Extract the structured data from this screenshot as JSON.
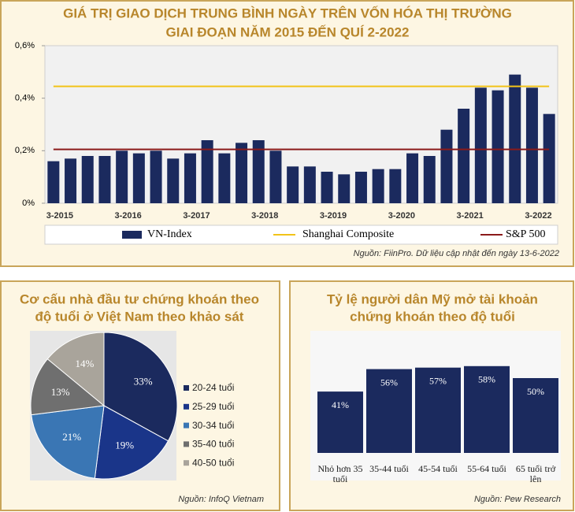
{
  "chart_data": [
    {
      "type": "bar",
      "title": [
        "GIÁ TRỊ GIAO DỊCH TRUNG BÌNH NGÀY TRÊN VỐN HÓA THỊ TRƯỜNG",
        "GIAI ĐOẠN NĂM 2015 ĐẾN QUÍ 2-2022"
      ],
      "categories": [
        "3-2015",
        null,
        null,
        null,
        "3-2016",
        null,
        null,
        null,
        "3-2017",
        null,
        null,
        null,
        "3-2018",
        null,
        null,
        null,
        "3-2019",
        null,
        null,
        null,
        "3-2020",
        null,
        null,
        null,
        "3-2021",
        null,
        null,
        null,
        "3-2022",
        null
      ],
      "series": [
        {
          "name": "VN-Index",
          "type": "bar",
          "color": "#1b2a5e",
          "values": [
            0.16,
            0.17,
            0.18,
            0.18,
            0.2,
            0.19,
            0.2,
            0.17,
            0.19,
            0.24,
            0.19,
            0.23,
            0.24,
            0.2,
            0.14,
            0.14,
            0.12,
            0.11,
            0.12,
            0.13,
            0.13,
            0.19,
            0.18,
            0.28,
            0.36,
            0.44,
            0.43,
            0.49,
            0.44,
            0.34
          ]
        },
        {
          "name": "Shanghai Composite",
          "type": "line",
          "color": "#f2c318",
          "values": [
            0.445,
            0.445,
            0.445,
            0.445,
            0.445,
            0.445,
            0.445,
            0.445,
            0.445,
            0.445,
            0.445,
            0.445,
            0.445,
            0.445,
            0.445,
            0.445,
            0.445,
            0.445,
            0.445,
            0.445,
            0.445,
            0.445,
            0.445,
            0.445,
            0.445,
            0.445,
            0.445,
            0.445,
            0.445,
            0.445
          ]
        },
        {
          "name": "S&P 500",
          "type": "line",
          "color": "#8b1a1a",
          "values": [
            0.205,
            0.205,
            0.205,
            0.205,
            0.205,
            0.205,
            0.205,
            0.205,
            0.205,
            0.205,
            0.205,
            0.205,
            0.205,
            0.205,
            0.205,
            0.205,
            0.205,
            0.205,
            0.205,
            0.205,
            0.205,
            0.205,
            0.205,
            0.205,
            0.205,
            0.205,
            0.205,
            0.205,
            0.205,
            0.205
          ]
        }
      ],
      "ylim": [
        0,
        0.6
      ],
      "yticks": [
        {
          "value": 0,
          "label": "0%"
        },
        {
          "value": 0.2,
          "label": "0,2%"
        },
        {
          "value": 0.4,
          "label": "0,4%"
        },
        {
          "value": 0.6,
          "label": "0,6%"
        }
      ],
      "source": "Nguồn: FiinPro. Dữ liệu cập nhật đến ngày 13-6-2022"
    },
    {
      "type": "pie",
      "title": [
        "Cơ cấu nhà đầu tư chứng khoán theo",
        "độ tuổi ở Việt Nam theo khảo sát"
      ],
      "categories": [
        "20-24 tuổi",
        "25-29 tuổi",
        "30-34 tuổi",
        "35-40 tuổi",
        "40-50 tuổi"
      ],
      "values": [
        33,
        19,
        21,
        13,
        14
      ],
      "value_labels": [
        "33%",
        "19%",
        "21%",
        "13%",
        "14%"
      ],
      "colors": [
        "#1b2a5e",
        "#1a3589",
        "#3a76b4",
        "#6f6f6f",
        "#a9a49b"
      ],
      "source": "Nguồn: InfoQ Vietnam"
    },
    {
      "type": "bar",
      "title": [
        "Tỷ lệ người dân Mỹ mở tài khoản",
        "chứng khoán theo độ tuổi"
      ],
      "categories": [
        "Nhỏ hơn 35 tuổi",
        "35-44 tuổi",
        "45-54 tuổi",
        "55-64 tuổi",
        "65 tuổi trở lên"
      ],
      "values": [
        41,
        56,
        57,
        58,
        50
      ],
      "value_labels": [
        "41%",
        "56%",
        "57%",
        "58%",
        "50%"
      ],
      "color": "#1b2a5e",
      "source": "Nguồn: Pew Research"
    }
  ]
}
